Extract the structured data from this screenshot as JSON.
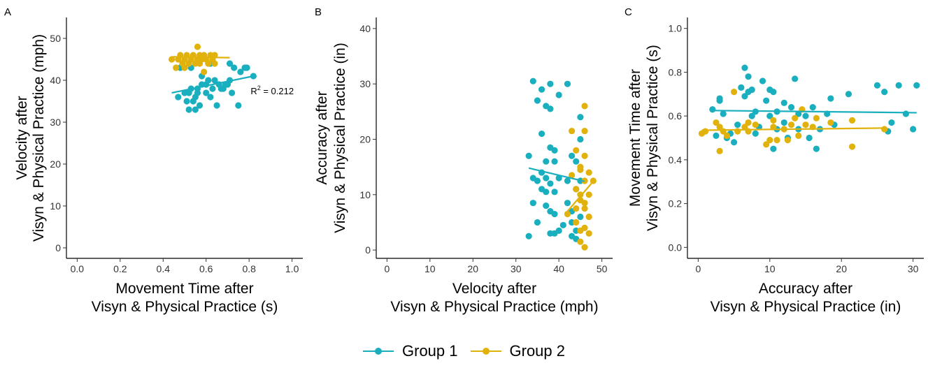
{
  "legend": {
    "items": [
      {
        "label": "Group 1",
        "color": "#1AAFBF"
      },
      {
        "label": "Group 2",
        "color": "#E1B20B"
      }
    ]
  },
  "chart_data": [
    {
      "panel": "A",
      "type": "scatter",
      "xlabel": [
        "Movement Time after",
        "Visyn & Physical Practice (s)"
      ],
      "ylabel": [
        "Velocity after",
        "Visyn & Physical Practice (mph)"
      ],
      "xlim": [
        -0.05,
        1.05
      ],
      "ylim": [
        -2.5,
        55
      ],
      "xticks": [
        "0.0",
        "0.2",
        "0.4",
        "0.6",
        "0.8",
        "1.0"
      ],
      "yticks": [
        "0",
        "10",
        "20",
        "30",
        "40",
        "50"
      ],
      "annotation": {
        "text": "R² = 0.212",
        "r2_prefix": "R",
        "r2_sup": "2",
        "r2_value": "= 0.212",
        "x": 0.82,
        "y": 37.5
      },
      "series": [
        {
          "name": "Group 1",
          "color": "#1AAFBF",
          "points": [
            [
              0.48,
              43
            ],
            [
              0.47,
              36
            ],
            [
              0.5,
              37
            ],
            [
              0.51,
              35
            ],
            [
              0.52,
              33
            ],
            [
              0.52,
              37
            ],
            [
              0.53,
              38
            ],
            [
              0.53,
              43
            ],
            [
              0.54,
              35
            ],
            [
              0.55,
              33
            ],
            [
              0.55,
              36
            ],
            [
              0.56,
              37
            ],
            [
              0.56,
              38
            ],
            [
              0.57,
              34
            ],
            [
              0.58,
              39
            ],
            [
              0.58,
              41
            ],
            [
              0.6,
              37
            ],
            [
              0.6,
              39
            ],
            [
              0.61,
              40
            ],
            [
              0.62,
              36
            ],
            [
              0.62,
              44
            ],
            [
              0.63,
              38
            ],
            [
              0.64,
              40
            ],
            [
              0.65,
              34
            ],
            [
              0.66,
              39
            ],
            [
              0.67,
              38
            ],
            [
              0.68,
              38
            ],
            [
              0.69,
              39
            ],
            [
              0.7,
              39
            ],
            [
              0.71,
              40
            ],
            [
              0.71,
              44
            ],
            [
              0.72,
              37
            ],
            [
              0.73,
              43
            ],
            [
              0.75,
              34
            ],
            [
              0.76,
              42
            ],
            [
              0.78,
              43
            ],
            [
              0.79,
              43
            ],
            [
              0.82,
              41
            ]
          ],
          "trend": [
            [
              0.44,
              37.0
            ],
            [
              0.82,
              41.0
            ]
          ]
        },
        {
          "name": "Group 2",
          "color": "#E1B20B",
          "points": [
            [
              0.44,
              45
            ],
            [
              0.46,
              43
            ],
            [
              0.47,
              45
            ],
            [
              0.48,
              46
            ],
            [
              0.49,
              44
            ],
            [
              0.5,
              45
            ],
            [
              0.5,
              43
            ],
            [
              0.51,
              46
            ],
            [
              0.52,
              44
            ],
            [
              0.53,
              45
            ],
            [
              0.54,
              46
            ],
            [
              0.55,
              44
            ],
            [
              0.56,
              45
            ],
            [
              0.56,
              48
            ],
            [
              0.57,
              44
            ],
            [
              0.57,
              46
            ],
            [
              0.58,
              45
            ],
            [
              0.59,
              42
            ],
            [
              0.59,
              46
            ],
            [
              0.6,
              45
            ],
            [
              0.61,
              44
            ],
            [
              0.62,
              46
            ],
            [
              0.63,
              45
            ],
            [
              0.64,
              44
            ],
            [
              0.64,
              46
            ]
          ],
          "trend": [
            [
              0.44,
              45.6
            ],
            [
              0.71,
              45.4
            ]
          ]
        }
      ]
    },
    {
      "panel": "B",
      "type": "scatter",
      "xlabel": [
        "Velocity after",
        "Visyn & Physical Practice (mph)"
      ],
      "ylabel": [
        "Accuracy after",
        "Visyn & Physical Practice (in)"
      ],
      "xlim": [
        -2.5,
        52.5
      ],
      "ylim": [
        -1.5,
        42
      ],
      "xticks": [
        "0",
        "10",
        "20",
        "30",
        "40",
        "50"
      ],
      "yticks": [
        "0",
        "10",
        "20",
        "30",
        "40"
      ],
      "series": [
        {
          "name": "Group 1",
          "color": "#1AAFBF",
          "points": [
            [
              33,
              17
            ],
            [
              33,
              2.5
            ],
            [
              34,
              30.5
            ],
            [
              34,
              13
            ],
            [
              34,
              8.5
            ],
            [
              35,
              12.5
            ],
            [
              35,
              5
            ],
            [
              35,
              27
            ],
            [
              36,
              11
            ],
            [
              36,
              14
            ],
            [
              36,
              21
            ],
            [
              36,
              29
            ],
            [
              37,
              13
            ],
            [
              37,
              10.5
            ],
            [
              37,
              16
            ],
            [
              37,
              26
            ],
            [
              37,
              8
            ],
            [
              38,
              25.5
            ],
            [
              38,
              7
            ],
            [
              38,
              3
            ],
            [
              38,
              12
            ],
            [
              38,
              18.5
            ],
            [
              38,
              30
            ],
            [
              39,
              6.5
            ],
            [
              39,
              3
            ],
            [
              39,
              16
            ],
            [
              39,
              18
            ],
            [
              39,
              10.5
            ],
            [
              40,
              28
            ],
            [
              40,
              3.5
            ],
            [
              40,
              13
            ],
            [
              41,
              4.5
            ],
            [
              42,
              8.5
            ],
            [
              42,
              12.5
            ],
            [
              42,
              30
            ],
            [
              43,
              5
            ],
            [
              43,
              17
            ],
            [
              43,
              2.5
            ],
            [
              43,
              7
            ],
            [
              44,
              2
            ],
            [
              44,
              16
            ],
            [
              44,
              11
            ],
            [
              44,
              3.5
            ],
            [
              45,
              24
            ],
            [
              45,
              20
            ],
            [
              45,
              6
            ],
            [
              45,
              12.5
            ]
          ],
          "trend": [
            [
              33,
              14.8
            ],
            [
              46,
              12.4
            ]
          ]
        },
        {
          "name": "Group 2",
          "color": "#E1B20B",
          "points": [
            [
              42,
              6.5
            ],
            [
              43,
              21.5
            ],
            [
              43,
              13.5
            ],
            [
              44,
              11
            ],
            [
              44,
              7.5
            ],
            [
              44,
              5
            ],
            [
              44,
              18
            ],
            [
              45,
              14.5
            ],
            [
              45,
              3.5
            ],
            [
              45,
              1.5
            ],
            [
              45,
              9
            ],
            [
              45,
              10
            ],
            [
              45,
              15
            ],
            [
              46,
              7.5
            ],
            [
              46,
              12.5
            ],
            [
              46,
              0.5
            ],
            [
              46,
              4
            ],
            [
              46,
              26
            ],
            [
              46,
              17
            ],
            [
              46,
              21.5
            ],
            [
              46,
              8.5
            ],
            [
              47,
              3
            ],
            [
              47,
              6
            ],
            [
              47,
              10
            ],
            [
              47,
              14
            ],
            [
              48,
              12.5
            ]
          ],
          "trend": [
            [
              42,
              7.0
            ],
            [
              48,
              12.4
            ]
          ]
        }
      ]
    },
    {
      "panel": "C",
      "type": "scatter",
      "xlabel": [
        "Accuracy after",
        "Visyn & Physical Practice (in)"
      ],
      "ylabel": [
        "Movement Time after",
        "Visyn & Physical Practice (s)"
      ],
      "xlim": [
        -1.5,
        31.5
      ],
      "ylim": [
        -0.05,
        1.05
      ],
      "xticks": [
        "0",
        "10",
        "20",
        "30"
      ],
      "yticks": [
        "0.0",
        "0.2",
        "0.4",
        "0.6",
        "0.8",
        "1.0"
      ],
      "series": [
        {
          "name": "Group 1",
          "color": "#1AAFBF",
          "points": [
            [
              2,
              0.63
            ],
            [
              2.5,
              0.51
            ],
            [
              3,
              0.67
            ],
            [
              3,
              0.68
            ],
            [
              3.5,
              0.61
            ],
            [
              4,
              0.5
            ],
            [
              4.5,
              0.52
            ],
            [
              5,
              0.48
            ],
            [
              5.5,
              0.56
            ],
            [
              6,
              0.73
            ],
            [
              6.5,
              0.82
            ],
            [
              6.5,
              0.69
            ],
            [
              7,
              0.78
            ],
            [
              7,
              0.71
            ],
            [
              7.5,
              0.72
            ],
            [
              7.5,
              0.6
            ],
            [
              8,
              0.62
            ],
            [
              8,
              0.52
            ],
            [
              8.5,
              0.55
            ],
            [
              9,
              0.76
            ],
            [
              9.5,
              0.67
            ],
            [
              10,
              0.72
            ],
            [
              10,
              0.6
            ],
            [
              10.5,
              0.45
            ],
            [
              10.5,
              0.71
            ],
            [
              11,
              0.62
            ],
            [
              11,
              0.54
            ],
            [
              12,
              0.66
            ],
            [
              12,
              0.57
            ],
            [
              12.5,
              0.5
            ],
            [
              13,
              0.64
            ],
            [
              13.5,
              0.77
            ],
            [
              14,
              0.61
            ],
            [
              14,
              0.54
            ],
            [
              15,
              0.6
            ],
            [
              15.5,
              0.5
            ],
            [
              16,
              0.64
            ],
            [
              16.5,
              0.45
            ],
            [
              17,
              0.54
            ],
            [
              18,
              0.61
            ],
            [
              18.5,
              0.68
            ],
            [
              19,
              0.56
            ],
            [
              21,
              0.7
            ],
            [
              25,
              0.74
            ],
            [
              26,
              0.71
            ],
            [
              26.5,
              0.53
            ],
            [
              27,
              0.57
            ],
            [
              28,
              0.74
            ],
            [
              29,
              0.61
            ],
            [
              30,
              0.54
            ],
            [
              30.5,
              0.74
            ]
          ],
          "trend": [
            [
              2,
              0.625
            ],
            [
              30.5,
              0.615
            ]
          ]
        },
        {
          "name": "Group 2",
          "color": "#E1B20B",
          "points": [
            [
              0.5,
              0.52
            ],
            [
              1,
              0.53
            ],
            [
              2.5,
              0.57
            ],
            [
              3,
              0.44
            ],
            [
              3,
              0.55
            ],
            [
              3.5,
              0.53
            ],
            [
              4,
              0.51
            ],
            [
              5,
              0.71
            ],
            [
              5.5,
              0.53
            ],
            [
              6.5,
              0.55
            ],
            [
              7,
              0.57
            ],
            [
              7,
              0.53
            ],
            [
              8,
              0.56
            ],
            [
              9.5,
              0.47
            ],
            [
              10,
              0.49
            ],
            [
              10.5,
              0.58
            ],
            [
              10.5,
              0.55
            ],
            [
              11,
              0.49
            ],
            [
              12,
              0.54
            ],
            [
              12.5,
              0.49
            ],
            [
              13,
              0.56
            ],
            [
              13.5,
              0.59
            ],
            [
              14,
              0.51
            ],
            [
              14.5,
              0.63
            ],
            [
              15,
              0.56
            ],
            [
              16,
              0.55
            ],
            [
              16.5,
              0.59
            ],
            [
              18.5,
              0.57
            ],
            [
              21.5,
              0.46
            ],
            [
              21.5,
              0.58
            ],
            [
              26,
              0.54
            ]
          ],
          "trend": [
            [
              0.5,
              0.535
            ],
            [
              26,
              0.545
            ]
          ]
        }
      ]
    }
  ]
}
